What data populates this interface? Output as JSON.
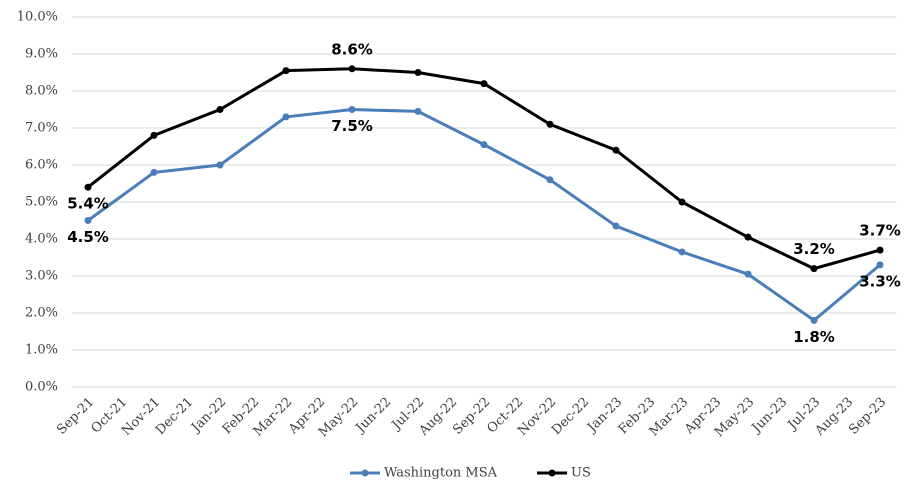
{
  "chart_data": {
    "type": "line",
    "categories": [
      "Sep-21",
      "Oct-21",
      "Nov-21",
      "Dec-21",
      "Jan-22",
      "Feb-22",
      "Mar-22",
      "Apr-22",
      "May-22",
      "Jun-22",
      "Jul-22",
      "Aug-22",
      "Sep-22",
      "Oct-22",
      "Nov-22",
      "Dec-22",
      "Jan-23",
      "Feb-23",
      "Mar-23",
      "Apr-23",
      "May-23",
      "Jun-23",
      "Jul-23",
      "Aug-23",
      "Sep-23"
    ],
    "x": [
      "Sep-21",
      "Nov-21",
      "Jan-22",
      "Mar-22",
      "May-22",
      "Jul-22",
      "Sep-22",
      "Nov-22",
      "Jan-23",
      "Mar-23",
      "May-23",
      "Jul-23",
      "Sep-23"
    ],
    "ylim": [
      0,
      10
    ],
    "yticks": [
      {
        "value": 0,
        "label": "0.0%"
      },
      {
        "value": 1,
        "label": "1.0%"
      },
      {
        "value": 2,
        "label": "2.0%"
      },
      {
        "value": 3,
        "label": "3.0%"
      },
      {
        "value": 4,
        "label": "4.0%"
      },
      {
        "value": 5,
        "label": "5.0%"
      },
      {
        "value": 6,
        "label": "6.0%"
      },
      {
        "value": 7,
        "label": "7.0%"
      },
      {
        "value": 8,
        "label": "8.0%"
      },
      {
        "value": 9,
        "label": "9.0%"
      },
      {
        "value": 10,
        "label": "10.0%"
      }
    ],
    "grid": true,
    "series": [
      {
        "name": "Washington MSA",
        "color": "#4a7ebb",
        "values": [
          4.5,
          5.8,
          6.0,
          7.3,
          7.5,
          7.45,
          6.55,
          5.6,
          4.35,
          3.65,
          3.05,
          1.8,
          3.3
        ],
        "value_labels": [
          "4.5%",
          null,
          null,
          null,
          "7.5%",
          null,
          null,
          null,
          null,
          null,
          null,
          "1.8%",
          "3.3%"
        ]
      },
      {
        "name": "US",
        "color": "#000000",
        "values": [
          5.4,
          6.8,
          7.5,
          8.55,
          8.6,
          8.5,
          8.2,
          7.1,
          6.4,
          5.0,
          4.05,
          3.2,
          3.7
        ],
        "value_labels": [
          "5.4%",
          null,
          null,
          null,
          "8.6%",
          null,
          null,
          null,
          null,
          null,
          null,
          "3.2%",
          "3.7%"
        ]
      }
    ]
  }
}
